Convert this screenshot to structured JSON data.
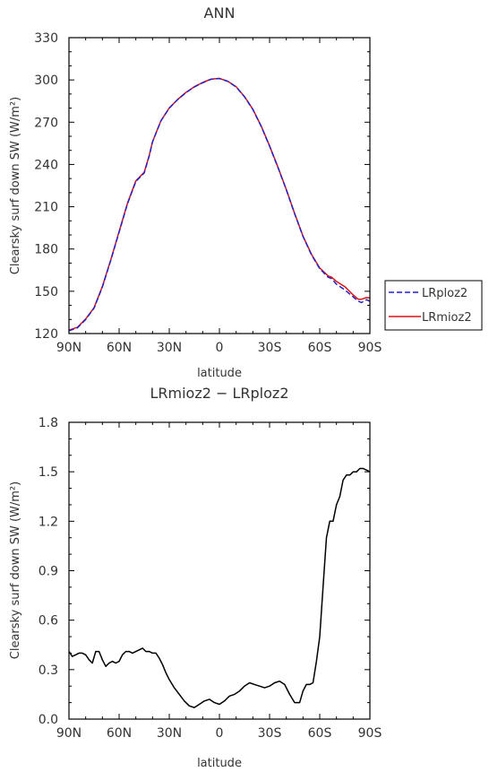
{
  "chart_data": [
    {
      "type": "line",
      "title": "ANN",
      "xlabel": "latitude",
      "ylabel": "Clearsky surf down SW (W/m²)",
      "xlim": [
        90,
        -90
      ],
      "ylim": [
        120,
        330
      ],
      "x_ticks": [
        "90N",
        "60N",
        "30N",
        "0",
        "30S",
        "60S",
        "90S"
      ],
      "y_ticks": [
        "120",
        "150",
        "180",
        "210",
        "240",
        "270",
        "300",
        "330"
      ],
      "legend_position": "right",
      "series": [
        {
          "name": "LRploz2",
          "color": "#2222cc",
          "style": "dashed",
          "x": [
            90,
            85,
            80,
            75,
            70,
            65,
            60,
            55,
            50,
            45,
            42,
            40,
            35,
            30,
            25,
            20,
            15,
            10,
            5,
            0,
            -5,
            -10,
            -15,
            -20,
            -25,
            -30,
            -35,
            -40,
            -45,
            -50,
            -55,
            -60,
            -65,
            -67,
            -70,
            -75,
            -80,
            -83,
            -85,
            -88,
            -90
          ],
          "values": [
            122,
            124,
            130,
            138,
            153,
            172,
            192,
            212,
            228,
            234,
            246,
            256,
            271,
            280,
            286,
            291,
            295,
            298,
            300.5,
            301,
            299,
            295,
            288,
            279,
            267,
            253,
            238,
            222,
            205,
            189,
            176,
            166,
            160,
            159,
            155,
            151,
            146,
            143,
            142,
            144,
            143
          ]
        },
        {
          "name": "LRmioz2",
          "color": "#dd1111",
          "style": "solid",
          "x": [
            90,
            85,
            80,
            75,
            70,
            65,
            60,
            55,
            50,
            45,
            42,
            40,
            35,
            30,
            25,
            20,
            15,
            10,
            5,
            0,
            -5,
            -10,
            -15,
            -20,
            -25,
            -30,
            -35,
            -40,
            -45,
            -50,
            -55,
            -60,
            -65,
            -67,
            -70,
            -75,
            -80,
            -83,
            -85,
            -88,
            -90
          ],
          "values": [
            122.4,
            124.4,
            130.4,
            138.3,
            153.4,
            172.4,
            192.4,
            212.4,
            228.4,
            234.4,
            246.3,
            256.2,
            271.1,
            280.1,
            286.1,
            291.2,
            295.2,
            298.2,
            300.6,
            301.1,
            299.1,
            295.2,
            288.2,
            279.2,
            267.2,
            253.2,
            238.2,
            222.2,
            205.2,
            189.2,
            176.3,
            166.5,
            160.9,
            160,
            157,
            153.3,
            147.4,
            144.4,
            144.4,
            145.5,
            145.3
          ]
        }
      ]
    },
    {
      "type": "line",
      "title": "LRmioz2 − LRploz2",
      "xlabel": "latitude",
      "ylabel": "Clearsky surf down SW (W/m²)",
      "xlim": [
        90,
        -90
      ],
      "ylim": [
        0,
        1.8
      ],
      "x_ticks": [
        "90N",
        "60N",
        "30N",
        "0",
        "30S",
        "60S",
        "90S"
      ],
      "y_ticks": [
        "0.0",
        "0.3",
        "0.6",
        "0.9",
        "1.2",
        "1.5",
        "1.8"
      ],
      "series": [
        {
          "name": "",
          "color": "#000000",
          "style": "solid",
          "x": [
            90,
            88,
            86,
            84,
            82,
            80,
            78,
            76,
            74,
            72,
            70,
            68,
            66,
            64,
            62,
            60,
            58,
            56,
            54,
            52,
            50,
            48,
            46,
            44,
            42,
            40,
            38,
            36,
            34,
            32,
            30,
            27,
            24,
            21,
            18,
            15,
            12,
            9,
            6,
            3,
            0,
            -3,
            -6,
            -9,
            -12,
            -15,
            -18,
            -21,
            -24,
            -27,
            -30,
            -33,
            -36,
            -39,
            -42,
            -45,
            -48,
            -50,
            -52,
            -54,
            -56,
            -58,
            -60,
            -62,
            -64,
            -66,
            -68,
            -70,
            -72,
            -74,
            -76,
            -78,
            -80,
            -82,
            -84,
            -86,
            -88,
            -90
          ],
          "values": [
            0.41,
            0.38,
            0.39,
            0.4,
            0.4,
            0.39,
            0.36,
            0.34,
            0.41,
            0.41,
            0.36,
            0.32,
            0.34,
            0.35,
            0.34,
            0.35,
            0.39,
            0.41,
            0.41,
            0.4,
            0.41,
            0.42,
            0.43,
            0.41,
            0.41,
            0.4,
            0.4,
            0.37,
            0.33,
            0.28,
            0.24,
            0.19,
            0.15,
            0.11,
            0.08,
            0.07,
            0.09,
            0.11,
            0.12,
            0.1,
            0.09,
            0.11,
            0.14,
            0.15,
            0.17,
            0.2,
            0.22,
            0.21,
            0.2,
            0.19,
            0.2,
            0.22,
            0.23,
            0.21,
            0.15,
            0.1,
            0.1,
            0.17,
            0.21,
            0.21,
            0.22,
            0.35,
            0.5,
            0.8,
            1.1,
            1.2,
            1.2,
            1.3,
            1.35,
            1.45,
            1.48,
            1.48,
            1.5,
            1.5,
            1.52,
            1.52,
            1.51,
            1.5
          ]
        }
      ]
    }
  ]
}
